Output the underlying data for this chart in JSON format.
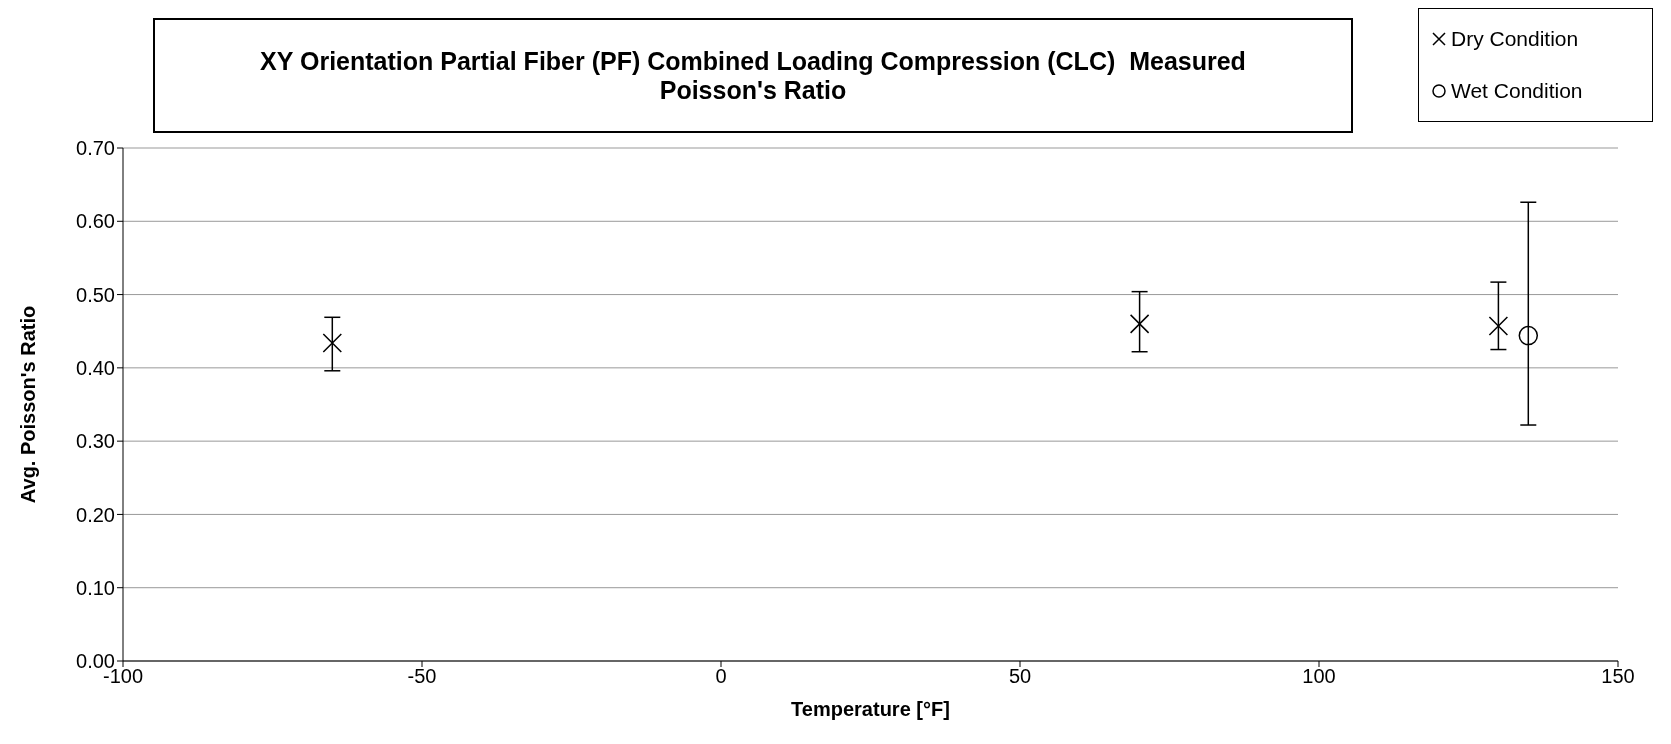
{
  "chart_data": {
    "type": "scatter",
    "title": "XY Orientation Partial Fiber (PF) Combined Loading Compression (CLC)  Measured Poisson's Ratio",
    "xlabel": "Temperature [°F]",
    "ylabel": "Avg. Poisson's Ratio",
    "series": [
      {
        "name": "Dry Condition",
        "color": "#000000",
        "marker": "cross",
        "x": [
          -65,
          70,
          130
        ],
        "values": [
          0.434,
          0.46,
          0.457
        ],
        "errors": [
          [
            0.396,
            0.469
          ],
          [
            0.422,
            0.504
          ],
          [
            0.425,
            0.517
          ]
        ]
      },
      {
        "name": "Wet Condition",
        "color": "#000000",
        "marker": "circle",
        "x": [
          135
        ],
        "values": [
          0.444
        ],
        "errors": [
          [
            0.322,
            0.626
          ]
        ]
      }
    ],
    "xlim": [
      -100,
      150
    ],
    "xticks": [
      -100,
      -50,
      0,
      50,
      100,
      150
    ],
    "ylim": [
      0,
      0.7
    ],
    "yticks": [
      {
        "value": 0,
        "label": "0.00"
      },
      {
        "value": 0.1,
        "label": "0.10"
      },
      {
        "value": 0.2,
        "label": "0.20"
      },
      {
        "value": 0.3,
        "label": "0.30"
      },
      {
        "value": 0.4,
        "label": "0.40"
      },
      {
        "value": 0.5,
        "label": "0.50"
      },
      {
        "value": 0.6,
        "label": "0.60"
      },
      {
        "value": 0.7,
        "label": "0.70"
      }
    ],
    "grid": "y",
    "legend": "top right"
  }
}
